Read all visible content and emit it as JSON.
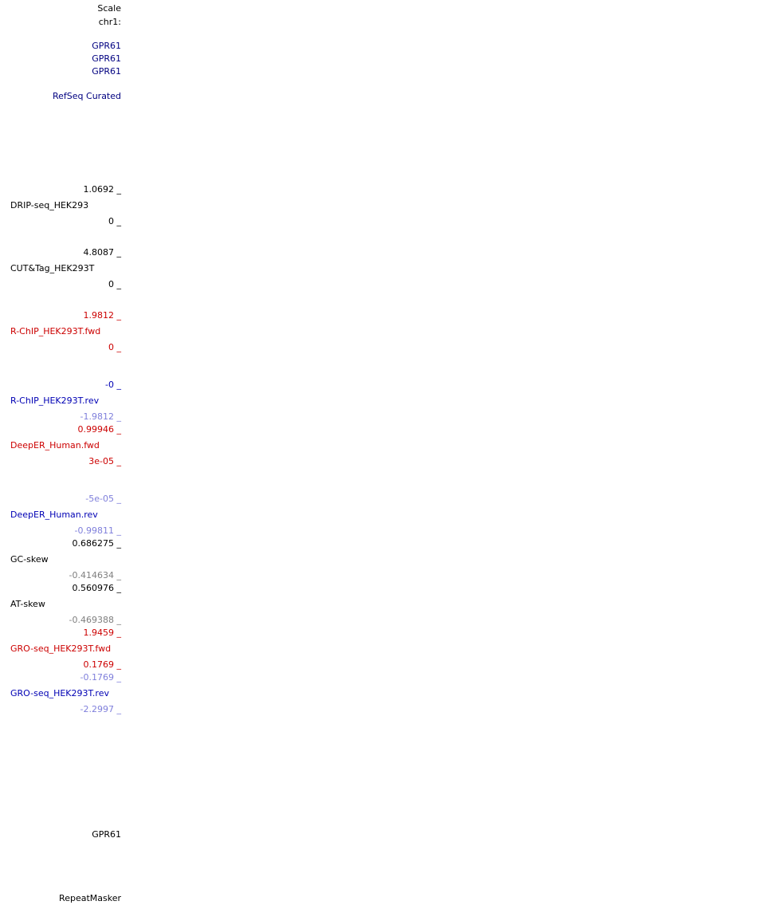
{
  "header": {
    "scale": "Scale",
    "chrom": "chr1:"
  },
  "genes": [
    "GPR61",
    "GPR61",
    "GPR61"
  ],
  "refseq_label": "RefSeq Curated",
  "tracks": {
    "drip": {
      "max": "1.0692 _",
      "name": "DRIP-seq_HEK293",
      "min": "0 _"
    },
    "cuttag": {
      "max": "4.8087 _",
      "name": "CUT&Tag_HEK293T",
      "min": "0 _"
    },
    "rchip_fwd": {
      "max": "1.9812 _",
      "name": "R-ChIP_HEK293T.fwd",
      "min": "0 _"
    },
    "rchip_rev": {
      "max": "-0 _",
      "name": "R-ChIP_HEK293T.rev",
      "min": "-1.9812 _"
    },
    "deeper_fwd": {
      "max": "0.99946 _",
      "name": "DeepER_Human.fwd",
      "min": "3e-05 _"
    },
    "deeper_rev": {
      "max": "-5e-05 _",
      "name": "DeepER_Human.rev",
      "min": "-0.99811 _"
    },
    "gc_skew": {
      "max": "0.686275 _",
      "name": "GC-skew",
      "min": "-0.414634 _"
    },
    "at_skew": {
      "max": "0.560976 _",
      "name": "AT-skew",
      "min": "-0.469388 _"
    },
    "gro_fwd": {
      "max": "1.9459 _",
      "name": "GRO-seq_HEK293T.fwd",
      "min": "0.1769 _"
    },
    "gro_rev": {
      "max": "-0.1769 _",
      "name": "GRO-seq_HEK293T.rev",
      "min": "-2.2997 _"
    }
  },
  "bottom": {
    "gene": "GPR61",
    "repeatmasker": "RepeatMasker"
  },
  "colors": {
    "navy": "#000080",
    "red": "#cc0000",
    "blue": "#0000b4",
    "light_blue": "#7f7fdb",
    "gray": "#7f7f7f"
  }
}
